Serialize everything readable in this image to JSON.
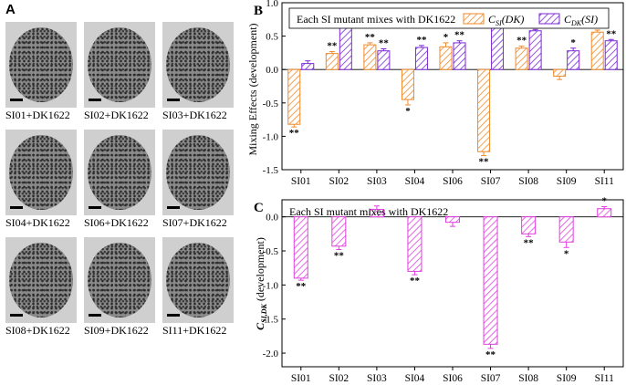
{
  "panel_a": {
    "letter": "A",
    "images": [
      {
        "label": "SI01+DK1622"
      },
      {
        "label": "SI02+DK1622"
      },
      {
        "label": "SI03+DK1622"
      },
      {
        "label": "SI04+DK1622"
      },
      {
        "label": "SI06+DK1622"
      },
      {
        "label": "SI07+DK1622"
      },
      {
        "label": "SI08+DK1622"
      },
      {
        "label": "SI09+DK1622"
      },
      {
        "label": "SI11+DK1622"
      }
    ]
  },
  "colors": {
    "orange": "#f08a2a",
    "purple": "#7b2ad6",
    "magenta": "#e23fe0"
  },
  "chart_data": [
    {
      "panel": "B",
      "type": "bar",
      "title": "Each SI mutant mixes with DK1622",
      "ylabel": "Mixing Effects (development)",
      "ylim": [
        -1.5,
        1.0
      ],
      "yticks": [
        "1.0",
        "0.5",
        "0.0",
        "-0.5",
        "-1.0",
        "-1.5"
      ],
      "categories": [
        "SI01",
        "SI02",
        "SI03",
        "SI04",
        "SI06",
        "SI07",
        "SI08",
        "SI09",
        "SI11"
      ],
      "legend": [
        {
          "name": "C",
          "sub": "SI",
          "suffix": "(DK)"
        },
        {
          "name": "C",
          "sub": "DK",
          "suffix": "(SI)"
        }
      ],
      "series": [
        {
          "name": "C_SI(DK)",
          "values": [
            -0.82,
            0.24,
            0.37,
            -0.45,
            0.34,
            -1.23,
            0.32,
            -0.1,
            0.56
          ],
          "errors": [
            0.04,
            0.03,
            0.03,
            0.08,
            0.06,
            0.06,
            0.03,
            0.05,
            0.03
          ],
          "sig": [
            "**",
            "**",
            "**",
            "*",
            "*",
            "**",
            "**",
            "",
            ""
          ]
        },
        {
          "name": "C_DK(SI)",
          "values": [
            0.09,
            0.67,
            0.28,
            0.33,
            0.4,
            0.66,
            0.58,
            0.28,
            0.43
          ],
          "errors": [
            0.04,
            0.02,
            0.03,
            0.03,
            0.03,
            0.02,
            0.02,
            0.04,
            0.02
          ],
          "sig": [
            "",
            "**",
            "**",
            "**",
            "**",
            "**",
            "**",
            "*",
            "**"
          ]
        }
      ]
    },
    {
      "panel": "C",
      "type": "bar",
      "title": "Each SI mutant mixes with DK1622",
      "ylabel_main": "C",
      "ylabel_sub": "SI,DK",
      "ylabel_rest": "(development)",
      "ylim": [
        -2.2,
        0.25
      ],
      "yticks": [
        "0.0",
        "-0.5",
        "-1.0",
        "-1.5",
        "-2.0"
      ],
      "categories": [
        "SI01",
        "SI02",
        "SI03",
        "SI04",
        "SI06",
        "SI07",
        "SI08",
        "SI09",
        "SI11"
      ],
      "series": [
        {
          "name": "C_SI,DK",
          "values": [
            -0.9,
            -0.43,
            0.11,
            -0.8,
            -0.08,
            -1.87,
            -0.25,
            -0.37,
            0.12
          ],
          "errors": [
            0.03,
            0.05,
            0.05,
            0.05,
            0.06,
            0.06,
            0.04,
            0.08,
            0.03
          ],
          "sig": [
            "**",
            "**",
            "",
            "**",
            "",
            "**",
            "**",
            "*",
            "*"
          ]
        }
      ]
    }
  ]
}
